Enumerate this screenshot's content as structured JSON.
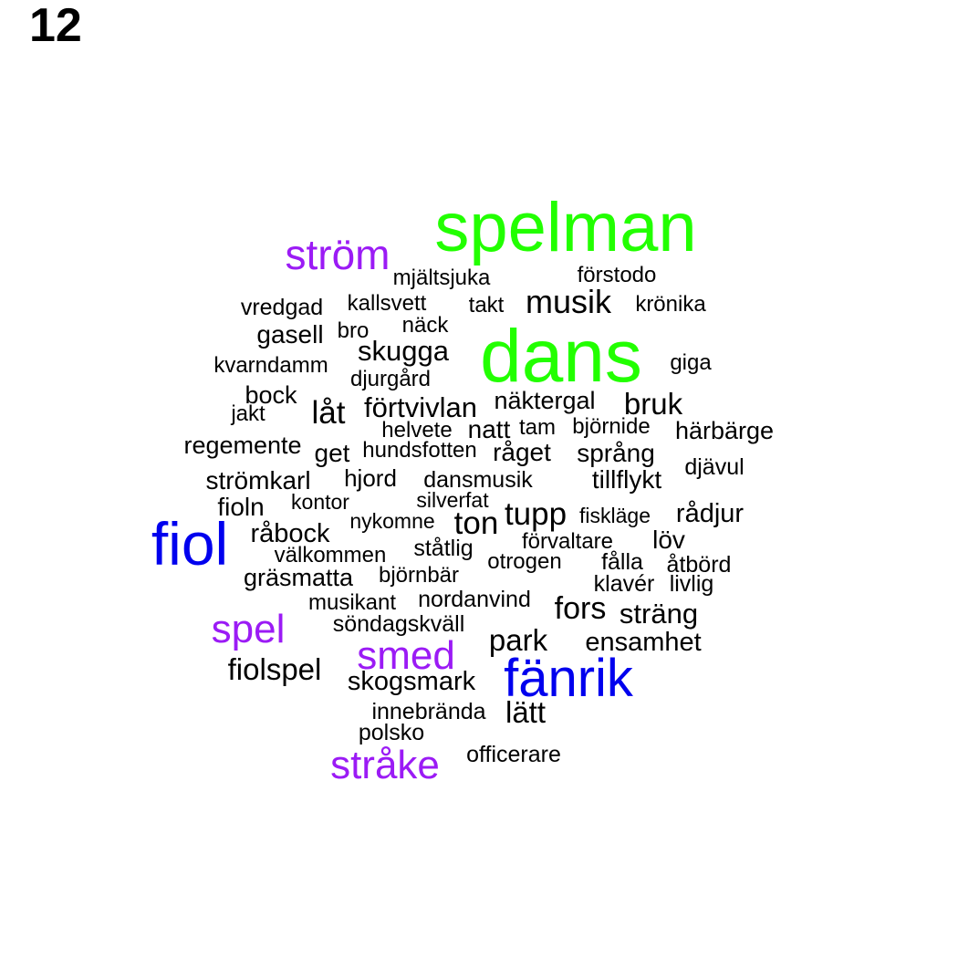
{
  "page_number": "12",
  "palette": {
    "green": "#22FF00",
    "blue": "#0000EE",
    "purple": "#9B1BF5",
    "black": "#000000"
  },
  "words": [
    {
      "text": "spelman",
      "color": "green",
      "weight": 1.0
    },
    {
      "text": "dans",
      "color": "green",
      "weight": 1.0
    },
    {
      "text": "fiol",
      "color": "blue",
      "weight": 0.75
    },
    {
      "text": "fänrik",
      "color": "blue",
      "weight": 0.75
    },
    {
      "text": "ström",
      "color": "purple",
      "weight": 0.55
    },
    {
      "text": "spel",
      "color": "purple",
      "weight": 0.55
    },
    {
      "text": "smed",
      "color": "purple",
      "weight": 0.55
    },
    {
      "text": "stråke",
      "color": "purple",
      "weight": 0.55
    },
    {
      "text": "mjältsjuka",
      "color": "black",
      "weight": 0.2
    },
    {
      "text": "förstodo",
      "color": "black",
      "weight": 0.2
    },
    {
      "text": "vredgad",
      "color": "black",
      "weight": 0.2
    },
    {
      "text": "kallsvett",
      "color": "black",
      "weight": 0.2
    },
    {
      "text": "takt",
      "color": "black",
      "weight": 0.2
    },
    {
      "text": "musik",
      "color": "black",
      "weight": 0.35
    },
    {
      "text": "krönika",
      "color": "black",
      "weight": 0.2
    },
    {
      "text": "gasell",
      "color": "black",
      "weight": 0.25
    },
    {
      "text": "bro",
      "color": "black",
      "weight": 0.2
    },
    {
      "text": "näck",
      "color": "black",
      "weight": 0.2
    },
    {
      "text": "skugga",
      "color": "black",
      "weight": 0.3
    },
    {
      "text": "kvarndamm",
      "color": "black",
      "weight": 0.2
    },
    {
      "text": "giga",
      "color": "black",
      "weight": 0.2
    },
    {
      "text": "djurgård",
      "color": "black",
      "weight": 0.2
    },
    {
      "text": "bock",
      "color": "black",
      "weight": 0.25
    },
    {
      "text": "jakt",
      "color": "black",
      "weight": 0.2
    },
    {
      "text": "låt",
      "color": "black",
      "weight": 0.3
    },
    {
      "text": "förtvivlan",
      "color": "black",
      "weight": 0.3
    },
    {
      "text": "näktergal",
      "color": "black",
      "weight": 0.25
    },
    {
      "text": "bruk",
      "color": "black",
      "weight": 0.3
    },
    {
      "text": "helvete",
      "color": "black",
      "weight": 0.2
    },
    {
      "text": "natt",
      "color": "black",
      "weight": 0.25
    },
    {
      "text": "tam",
      "color": "black",
      "weight": 0.2
    },
    {
      "text": "björnide",
      "color": "black",
      "weight": 0.2
    },
    {
      "text": "härbärge",
      "color": "black",
      "weight": 0.2
    },
    {
      "text": "regemente",
      "color": "black",
      "weight": 0.25
    },
    {
      "text": "get",
      "color": "black",
      "weight": 0.25
    },
    {
      "text": "hundsfotten",
      "color": "black",
      "weight": 0.2
    },
    {
      "text": "råget",
      "color": "black",
      "weight": 0.25
    },
    {
      "text": "språng",
      "color": "black",
      "weight": 0.25
    },
    {
      "text": "djävul",
      "color": "black",
      "weight": 0.2
    },
    {
      "text": "strömkarl",
      "color": "black",
      "weight": 0.25
    },
    {
      "text": "hjord",
      "color": "black",
      "weight": 0.2
    },
    {
      "text": "dansmusik",
      "color": "black",
      "weight": 0.2
    },
    {
      "text": "tillflykt",
      "color": "black",
      "weight": 0.25
    },
    {
      "text": "fioln",
      "color": "black",
      "weight": 0.25
    },
    {
      "text": "kontor",
      "color": "black",
      "weight": 0.2
    },
    {
      "text": "silverfat",
      "color": "black",
      "weight": 0.2
    },
    {
      "text": "tupp",
      "color": "black",
      "weight": 0.3
    },
    {
      "text": "fiskläge",
      "color": "black",
      "weight": 0.2
    },
    {
      "text": "rådjur",
      "color": "black",
      "weight": 0.25
    },
    {
      "text": "nykomne",
      "color": "black",
      "weight": 0.2
    },
    {
      "text": "ton",
      "color": "black",
      "weight": 0.3
    },
    {
      "text": "råbock",
      "color": "black",
      "weight": 0.25
    },
    {
      "text": "förvaltare",
      "color": "black",
      "weight": 0.2
    },
    {
      "text": "löv",
      "color": "black",
      "weight": 0.25
    },
    {
      "text": "ståtlig",
      "color": "black",
      "weight": 0.2
    },
    {
      "text": "välkommen",
      "color": "black",
      "weight": 0.2
    },
    {
      "text": "otrogen",
      "color": "black",
      "weight": 0.2
    },
    {
      "text": "fålla",
      "color": "black",
      "weight": 0.2
    },
    {
      "text": "åtbörd",
      "color": "black",
      "weight": 0.2
    },
    {
      "text": "gräsmatta",
      "color": "black",
      "weight": 0.25
    },
    {
      "text": "björnbär",
      "color": "black",
      "weight": 0.2
    },
    {
      "text": "klavér",
      "color": "black",
      "weight": 0.2
    },
    {
      "text": "livlig",
      "color": "black",
      "weight": 0.2
    },
    {
      "text": "musikant",
      "color": "black",
      "weight": 0.2
    },
    {
      "text": "nordanvind",
      "color": "black",
      "weight": 0.2
    },
    {
      "text": "fors",
      "color": "black",
      "weight": 0.3
    },
    {
      "text": "sträng",
      "color": "black",
      "weight": 0.25
    },
    {
      "text": "söndagskväll",
      "color": "black",
      "weight": 0.2
    },
    {
      "text": "park",
      "color": "black",
      "weight": 0.25
    },
    {
      "text": "ensamhet",
      "color": "black",
      "weight": 0.25
    },
    {
      "text": "fiolspel",
      "color": "black",
      "weight": 0.25
    },
    {
      "text": "skogsmark",
      "color": "black",
      "weight": 0.25
    },
    {
      "text": "innebrända",
      "color": "black",
      "weight": 0.2
    },
    {
      "text": "lätt",
      "color": "black",
      "weight": 0.25
    },
    {
      "text": "polsko",
      "color": "black",
      "weight": 0.2
    },
    {
      "text": "officerare",
      "color": "black",
      "weight": 0.2
    }
  ]
}
